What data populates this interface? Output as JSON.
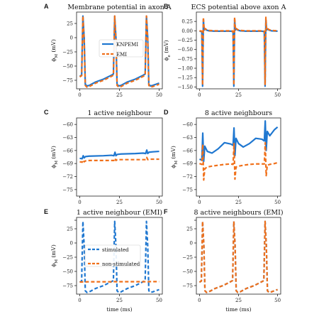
{
  "colors": {
    "blue": "#1f77d0",
    "orange": "#f0701a"
  },
  "chart_data": [
    {
      "letter": "A",
      "type": "line",
      "title": "Membrane potential in axon A",
      "ylabel": "ϕ_M (mV)",
      "xlabel": "",
      "xlim": [
        -2,
        52
      ],
      "ylim": [
        -90,
        45
      ],
      "xticks": [
        0,
        25,
        50
      ],
      "yticks": [
        25,
        0,
        -25,
        -50,
        -75
      ],
      "ytick_labels": [
        "25",
        "0",
        "−25",
        "−50",
        "−75"
      ],
      "legend": {
        "position": "center",
        "entries": [
          "KNPEMI",
          "EMI"
        ]
      },
      "series": [
        {
          "name": "KNPEMI",
          "color": "#1f77d0",
          "dash": "solid",
          "x": [
            0,
            1.2,
            2,
            2.8,
            3.5,
            4.5,
            6,
            10,
            15,
            20,
            21.2,
            22,
            22.8,
            23.5,
            24.5,
            26,
            30,
            35,
            40,
            41.2,
            42,
            42.8,
            43.5,
            44.5,
            46,
            50
          ],
          "y": [
            -68,
            -66,
            38,
            0,
            -82,
            -85,
            -84,
            -78,
            -73,
            -66,
            -64,
            38,
            0,
            -82,
            -85,
            -84,
            -78,
            -73,
            -66,
            -64,
            38,
            0,
            -82,
            -85,
            -84,
            -80
          ]
        },
        {
          "name": "EMI",
          "color": "#f0701a",
          "dash": "dashed",
          "x": [
            0,
            1.2,
            2,
            2.8,
            3.5,
            4.5,
            6,
            10,
            15,
            20,
            21.2,
            22,
            22.8,
            23.5,
            24.5,
            26,
            30,
            35,
            40,
            41.2,
            42,
            42.8,
            43.5,
            44.5,
            46,
            50
          ],
          "y": [
            -69,
            -67,
            38,
            -5,
            -84,
            -87,
            -86,
            -80,
            -75,
            -68,
            -66,
            38,
            -5,
            -84,
            -87,
            -86,
            -80,
            -75,
            -68,
            -66,
            38,
            -5,
            -84,
            -87,
            -86,
            -82
          ]
        }
      ]
    },
    {
      "letter": "B",
      "type": "line",
      "title": "ECS potential above axon A",
      "ylabel": "ϕ_e (mV)",
      "xlabel": "",
      "xlim": [
        -2,
        52
      ],
      "ylim": [
        -1.55,
        0.5
      ],
      "xticks": [
        0,
        25,
        50
      ],
      "yticks": [
        0.25,
        0,
        -0.25,
        -0.5,
        -0.75,
        -1,
        -1.25,
        -1.5
      ],
      "ytick_labels": [
        "0.25",
        "0.00",
        "−0.25",
        "−0.50",
        "−0.75",
        "−1.00",
        "−1.25",
        "−1.50"
      ],
      "series": [
        {
          "name": "KNPEMI",
          "color": "#1f77d0",
          "dash": "solid",
          "x": [
            0,
            1.5,
            2,
            2.5,
            3,
            3.6,
            4.5,
            6,
            10,
            20,
            21.5,
            22,
            22.5,
            23,
            23.6,
            24.5,
            26,
            30,
            40,
            41.5,
            42,
            42.5,
            43,
            43.6,
            44.5,
            46,
            50
          ],
          "y": [
            -0.01,
            -0.02,
            -1.48,
            0.3,
            0.02,
            0.05,
            0.02,
            0.0,
            -0.01,
            -0.01,
            -0.02,
            -1.48,
            0.3,
            0.02,
            0.05,
            0.02,
            0.0,
            -0.01,
            -0.01,
            -0.02,
            -1.48,
            0.3,
            0.02,
            0.05,
            0.02,
            0.0,
            -0.01
          ]
        },
        {
          "name": "EMI",
          "color": "#f0701a",
          "dash": "dashed",
          "x": [
            0,
            1.5,
            2,
            2.5,
            3,
            3.6,
            4.5,
            6,
            10,
            20,
            21.5,
            22,
            22.5,
            23,
            23.6,
            24.5,
            26,
            30,
            40,
            41.5,
            42,
            42.5,
            43,
            43.6,
            44.5,
            46,
            50
          ],
          "y": [
            0.0,
            -0.01,
            -1.45,
            0.36,
            0.03,
            0.06,
            0.03,
            0.01,
            0.0,
            0.0,
            -0.01,
            -1.45,
            0.36,
            0.03,
            0.06,
            0.03,
            0.01,
            0.0,
            0.0,
            -0.01,
            -1.45,
            0.36,
            0.03,
            0.06,
            0.03,
            0.01,
            0.0
          ]
        }
      ]
    },
    {
      "letter": "C",
      "type": "line",
      "title": "1 active neighbour",
      "ylabel": "ϕ_M (mV)",
      "xlabel": "",
      "xlim": [
        -2,
        52
      ],
      "ylim": [
        -76.5,
        -58.5
      ],
      "xticks": [
        0,
        25,
        50
      ],
      "yticks": [
        -60,
        -63,
        -66,
        -69,
        -72,
        -75
      ],
      "ytick_labels": [
        "−60",
        "−63",
        "−66",
        "−69",
        "−72",
        "−75"
      ],
      "series": [
        {
          "name": "KNPEMI",
          "color": "#1f77d0",
          "dash": "solid",
          "x": [
            0,
            1.5,
            2.2,
            2.8,
            3.6,
            6,
            15,
            20,
            21.5,
            22.2,
            22.8,
            23.6,
            26,
            35,
            40,
            41.5,
            42.2,
            42.8,
            43.6,
            46,
            50
          ],
          "y": [
            -67.8,
            -67.9,
            -67.2,
            -67.7,
            -67.4,
            -67.3,
            -67.2,
            -67.1,
            -67.2,
            -66.4,
            -67.2,
            -66.9,
            -66.8,
            -66.7,
            -66.6,
            -66.7,
            -65.9,
            -66.7,
            -66.4,
            -66.3,
            -66.2
          ]
        },
        {
          "name": "EMI",
          "color": "#f0701a",
          "dash": "dashed",
          "x": [
            0,
            1.5,
            2.2,
            2.8,
            3.6,
            6,
            15,
            20,
            21.5,
            22.2,
            22.8,
            23.6,
            26,
            35,
            40,
            41.5,
            42.2,
            42.8,
            43.6,
            46,
            50
          ],
          "y": [
            -68.6,
            -68.7,
            -68.2,
            -68.6,
            -68.4,
            -68.3,
            -68.3,
            -68.3,
            -68.3,
            -67.8,
            -68.3,
            -68.1,
            -68.1,
            -68.1,
            -68.1,
            -68.1,
            -67.6,
            -68.1,
            -68.0,
            -68.0,
            -68.0
          ]
        }
      ]
    },
    {
      "letter": "D",
      "type": "line",
      "title": "8 active neighbours",
      "ylabel": "ϕ_M (mV)",
      "xlabel": "",
      "xlim": [
        -2,
        52
      ],
      "ylim": [
        -76.5,
        -58.5
      ],
      "xticks": [
        0,
        25,
        50
      ],
      "yticks": [
        -60,
        -63,
        -66,
        -69,
        -72,
        -75
      ],
      "ytick_labels": [
        "−60",
        "−63",
        "−66",
        "−69",
        "−72",
        "−75"
      ],
      "series": [
        {
          "name": "KNPEMI",
          "color": "#1f77d0",
          "dash": "solid",
          "x": [
            0,
            1.5,
            2.1,
            2.7,
            3.4,
            5,
            8,
            12,
            16,
            20,
            21.5,
            22.1,
            22.7,
            23.4,
            25,
            28,
            32,
            36,
            40,
            41.5,
            42.1,
            42.7,
            43.4,
            45,
            48,
            50
          ],
          "y": [
            -68,
            -68.2,
            -62,
            -68.5,
            -65,
            -66.2,
            -66.6,
            -65.6,
            -64.2,
            -64.5,
            -64.8,
            -60.8,
            -67.2,
            -63.2,
            -64.4,
            -65.2,
            -64.4,
            -63.2,
            -63.4,
            -63.8,
            -59.2,
            -66,
            -61.6,
            -62.6,
            -61.2,
            -60.6
          ]
        },
        {
          "name": "EMI",
          "color": "#f0701a",
          "dash": "dashed",
          "x": [
            0,
            1.5,
            2.1,
            2.7,
            3.4,
            5,
            8,
            12,
            16,
            20,
            21.5,
            22.1,
            22.7,
            23.4,
            25,
            28,
            32,
            36,
            40,
            41.5,
            42.1,
            42.7,
            43.4,
            45,
            48,
            50
          ],
          "y": [
            -69,
            -69.2,
            -64.6,
            -72.8,
            -70.2,
            -69.8,
            -69.6,
            -69.4,
            -69.2,
            -69.1,
            -69.2,
            -64.4,
            -72.6,
            -69.8,
            -69.6,
            -69.4,
            -69.2,
            -69.1,
            -69.1,
            -69.1,
            -64.2,
            -71.8,
            -69.4,
            -69.2,
            -69,
            -68.8
          ]
        }
      ]
    },
    {
      "letter": "E",
      "type": "line",
      "title": "1 active neighbour (EMI)",
      "ylabel": "ϕ_M (mV)",
      "xlabel": "time (ms)",
      "xlim": [
        -2,
        52
      ],
      "ylim": [
        -90,
        45
      ],
      "xticks": [
        0,
        25,
        50
      ],
      "yticks": [
        40,
        25,
        0,
        -25,
        -50,
        -75
      ],
      "ytick_labels": [
        "",
        "25",
        "0",
        "−25",
        "−50",
        "−75"
      ],
      "legend": {
        "position": "center",
        "entries": [
          "stimulated",
          "non-stimulated"
        ]
      },
      "series": [
        {
          "name": "stimulated",
          "color": "#1f77d0",
          "dash": "dashed",
          "x": [
            0,
            1.2,
            2,
            2.8,
            3.5,
            4.5,
            6,
            10,
            15,
            20,
            21.2,
            22,
            22.8,
            23.5,
            24.5,
            26,
            30,
            35,
            40,
            41.2,
            42,
            42.8,
            43.5,
            44.5,
            46,
            50
          ],
          "y": [
            -69,
            -67,
            38,
            -5,
            -84,
            -87,
            -86,
            -80,
            -75,
            -68,
            -66,
            38,
            -5,
            -84,
            -87,
            -86,
            -80,
            -75,
            -68,
            -66,
            38,
            -5,
            -84,
            -87,
            -86,
            -82
          ]
        },
        {
          "name": "non-stimulated",
          "color": "#f0701a",
          "dash": "dashed",
          "x": [
            0,
            1.5,
            2.2,
            2.8,
            3.6,
            6,
            15,
            20,
            21.5,
            22.2,
            22.8,
            23.6,
            26,
            35,
            40,
            41.5,
            42.2,
            42.8,
            43.6,
            46,
            50
          ],
          "y": [
            -68.6,
            -68.7,
            -68.2,
            -68.6,
            -68.4,
            -68.3,
            -68.3,
            -68.3,
            -68.3,
            -67.8,
            -68.3,
            -68.1,
            -68.1,
            -68.1,
            -68.1,
            -68.1,
            -67.6,
            -68.1,
            -68.0,
            -68.0,
            -68.0
          ]
        }
      ]
    },
    {
      "letter": "F",
      "type": "line",
      "title": "8 active neighbours (EMI)",
      "ylabel": "",
      "xlabel": "time (ms)",
      "xlim": [
        -2,
        52
      ],
      "ylim": [
        -90,
        45
      ],
      "xticks": [
        0,
        25,
        50
      ],
      "yticks": [
        40,
        25,
        0,
        -25,
        -50,
        -75
      ],
      "ytick_labels": [
        "",
        "25",
        "0",
        "−25",
        "−50",
        "−75"
      ],
      "series": [
        {
          "name": "stimulated",
          "color": "#1f77d0",
          "dash": "dashed",
          "x": [
            0,
            1.2,
            2,
            2.8,
            3.5,
            4.5,
            6,
            10,
            15,
            20,
            21.2,
            22,
            22.8,
            23.5,
            24.5,
            26,
            30,
            35,
            40,
            41.2,
            42,
            42.8,
            43.5,
            44.5,
            46,
            50
          ],
          "y": [
            -69,
            -67,
            38,
            -5,
            -84,
            -87,
            -86,
            -80,
            -75,
            -68,
            -66,
            38,
            -5,
            -84,
            -87,
            -86,
            -80,
            -75,
            -68,
            -66,
            38,
            -5,
            -84,
            -87,
            -86,
            -82
          ]
        },
        {
          "name": "non-stimulated",
          "color": "#f0701a",
          "dash": "dashed",
          "x": [
            0,
            1.2,
            2,
            2.8,
            3.5,
            4.5,
            6,
            10,
            15,
            20,
            21.2,
            22,
            22.8,
            23.5,
            24.5,
            26,
            30,
            35,
            40,
            41.2,
            42,
            42.8,
            43.5,
            44.5,
            46,
            50
          ],
          "y": [
            -69,
            -67,
            38,
            -5,
            -84,
            -87,
            -86,
            -80,
            -75,
            -68,
            -66,
            38,
            -5,
            -84,
            -87,
            -86,
            -80,
            -75,
            -68,
            -66,
            38,
            -5,
            -84,
            -87,
            -86,
            -82
          ]
        }
      ]
    }
  ]
}
